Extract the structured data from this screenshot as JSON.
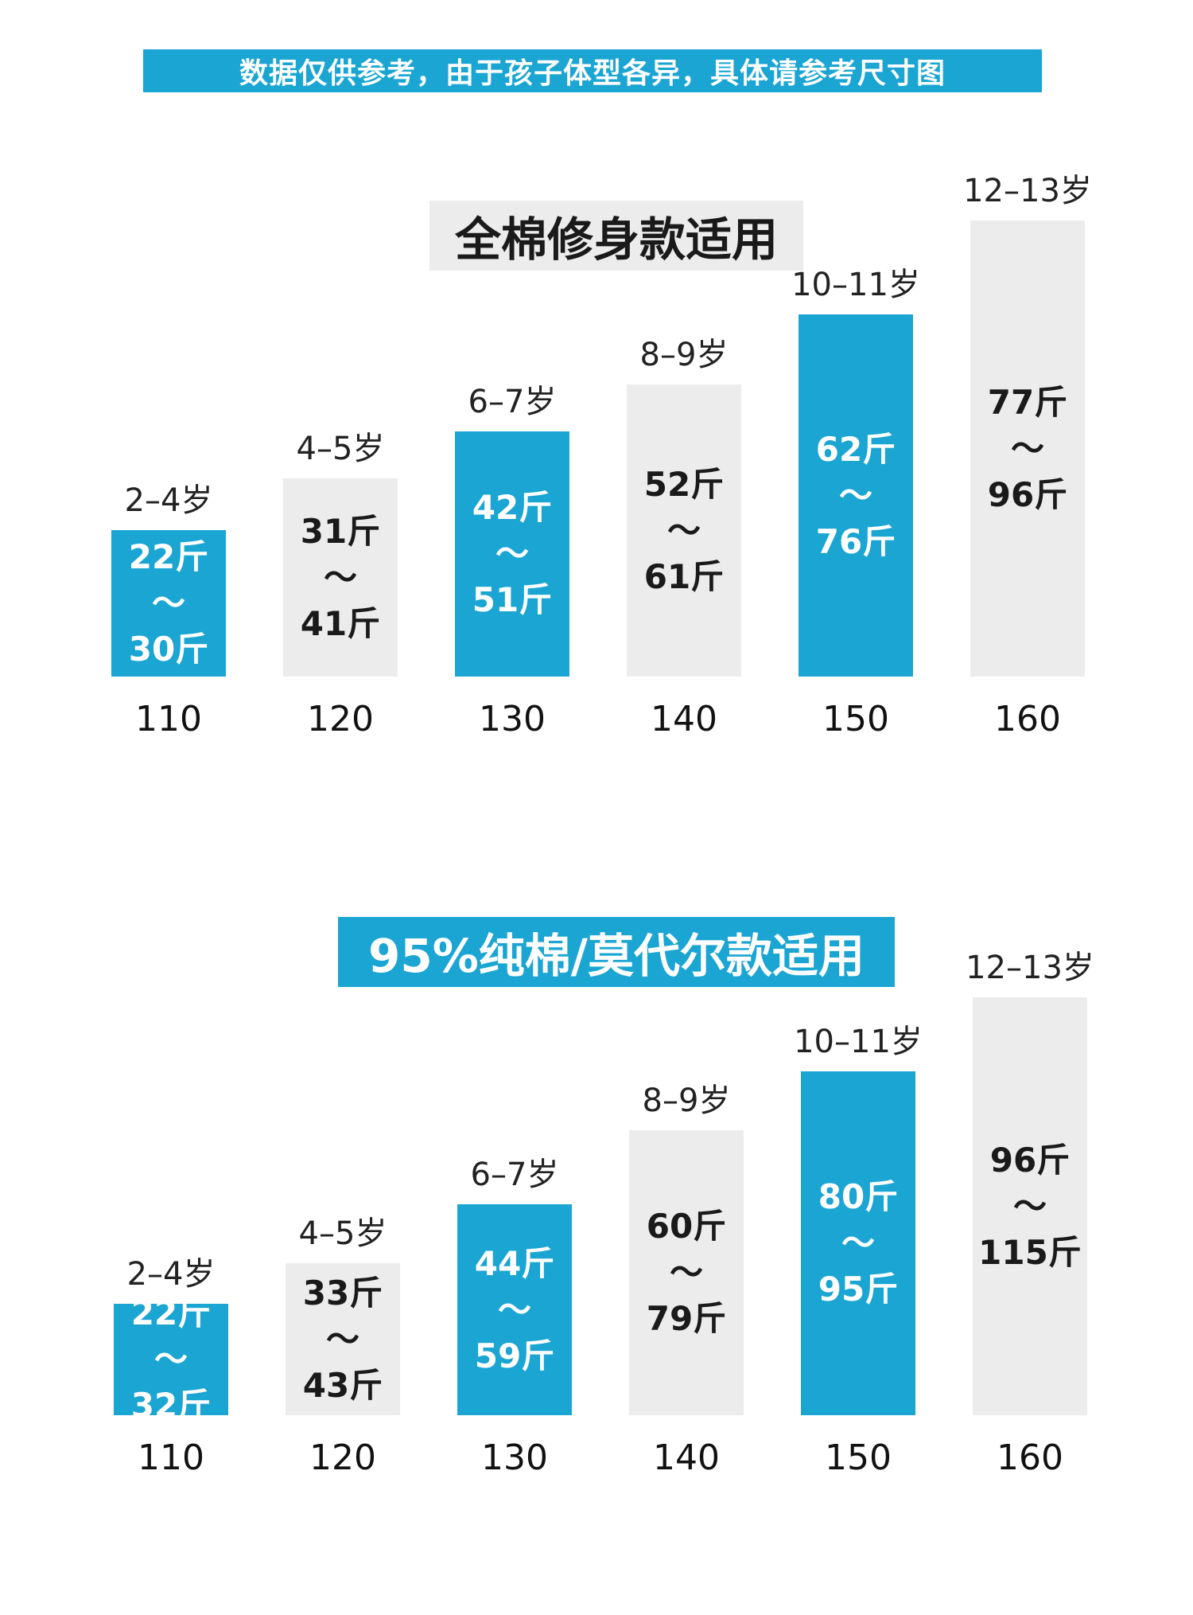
{
  "banner": "数据仅供参考，由于孩子体型各异，具体请参考尺寸图",
  "colors": {
    "accent": "#1aa5d3",
    "grey": "#ececec"
  },
  "chart_data": [
    {
      "type": "bar",
      "title": "全棉修身款适用",
      "categories": [
        "110",
        "120",
        "130",
        "140",
        "150",
        "160"
      ],
      "ages": [
        "2–4岁",
        "4–5岁",
        "6–7岁",
        "8–9岁",
        "10–11岁",
        "12–13岁"
      ],
      "weight_min": [
        22,
        31,
        42,
        52,
        62,
        77
      ],
      "weight_max": [
        30,
        41,
        51,
        61,
        76,
        96
      ],
      "labels_min": [
        "22斤",
        "31斤",
        "42斤",
        "52斤",
        "62斤",
        "77斤"
      ],
      "labels_max": [
        "30斤",
        "41斤",
        "51斤",
        "61斤",
        "76斤",
        "96斤"
      ],
      "tilde": "～",
      "bar_colors": [
        "blue",
        "grey",
        "blue",
        "grey",
        "blue",
        "grey"
      ]
    },
    {
      "type": "bar",
      "title": "95%纯棉/莫代尔款适用",
      "categories": [
        "110",
        "120",
        "130",
        "140",
        "150",
        "160"
      ],
      "ages": [
        "2–4岁",
        "4–5岁",
        "6–7岁",
        "8–9岁",
        "10–11岁",
        "12–13岁"
      ],
      "weight_min": [
        22,
        33,
        44,
        60,
        80,
        96
      ],
      "weight_max": [
        32,
        43,
        59,
        79,
        95,
        115
      ],
      "labels_min": [
        "22斤",
        "33斤",
        "44斤",
        "60斤",
        "80斤",
        "96斤"
      ],
      "labels_max": [
        "32斤",
        "43斤",
        "59斤",
        "79斤",
        "95斤",
        "115斤"
      ],
      "tilde": "～",
      "bar_colors": [
        "blue",
        "grey",
        "blue",
        "grey",
        "blue",
        "grey"
      ]
    }
  ]
}
